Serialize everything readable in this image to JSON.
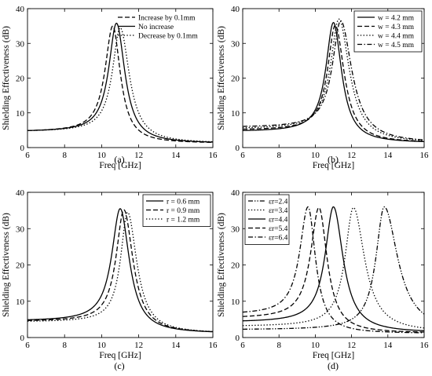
{
  "chart_data": [
    {
      "type": "line",
      "panel_label": "(a)",
      "xlabel": "Freq [GHz]",
      "ylabel": "Shielding Effectiveness (dB)",
      "xlim": [
        6,
        16
      ],
      "ylim": [
        0,
        40
      ],
      "xticks": [
        6,
        8,
        10,
        12,
        14,
        16
      ],
      "yticks": [
        0,
        10,
        20,
        30,
        40
      ],
      "legend_position": "top-right",
      "series": [
        {
          "name": "Increase by 0.1mm",
          "dash": "dashed",
          "f0": 10.6,
          "peak": 35.0,
          "left_gamma": 0.5,
          "right_gamma": 0.5,
          "floor": 1.2,
          "base6": 4.9
        },
        {
          "name": "No increase",
          "dash": "solid",
          "f0": 10.8,
          "peak": 35.8,
          "left_gamma": 0.5,
          "right_gamma": 0.55,
          "floor": 1.2,
          "base6": 4.9
        },
        {
          "name": "Decrease by 0.1mm",
          "dash": "dotted",
          "f0": 11.0,
          "peak": 34.5,
          "left_gamma": 0.5,
          "right_gamma": 0.6,
          "floor": 1.2,
          "base6": 4.9
        }
      ]
    },
    {
      "type": "line",
      "panel_label": "(b)",
      "xlabel": "Freq [GHz]",
      "ylabel": "Shielding Effectiveness (dB)",
      "xlim": [
        6,
        16
      ],
      "ylim": [
        0,
        40
      ],
      "xticks": [
        6,
        8,
        10,
        12,
        14,
        16
      ],
      "yticks": [
        0,
        10,
        20,
        30,
        40
      ],
      "legend_position": "top-right",
      "series": [
        {
          "name": "w = 4.2 mm",
          "dash": "solid",
          "f0": 11.0,
          "peak": 36.0,
          "left_gamma": 0.5,
          "right_gamma": 0.55,
          "floor": 1.3,
          "base6": 4.9
        },
        {
          "name": "w = 4.3 mm",
          "dash": "dashed",
          "f0": 11.1,
          "peak": 35.2,
          "left_gamma": 0.5,
          "right_gamma": 0.6,
          "floor": 1.3,
          "base6": 5.3
        },
        {
          "name": "w = 4.4 mm",
          "dash": "dotted",
          "f0": 11.3,
          "peak": 37.0,
          "left_gamma": 0.55,
          "right_gamma": 0.7,
          "floor": 1.3,
          "base6": 5.7
        },
        {
          "name": "w = 4.5 mm",
          "dash": "dashdot",
          "f0": 11.4,
          "peak": 36.5,
          "left_gamma": 0.55,
          "right_gamma": 0.75,
          "floor": 1.3,
          "base6": 6.1
        }
      ]
    },
    {
      "type": "line",
      "panel_label": "(c)",
      "xlabel": "Freq [GHz]",
      "ylabel": "Shielding Effectiveness (dB)",
      "xlim": [
        6,
        16
      ],
      "ylim": [
        0,
        40
      ],
      "xticks": [
        6,
        8,
        10,
        12,
        14,
        16
      ],
      "yticks": [
        0,
        10,
        20,
        30,
        40
      ],
      "legend_position": "top-right",
      "series": [
        {
          "name": "r = 0.6 mm",
          "dash": "solid",
          "f0": 11.0,
          "peak": 35.5,
          "left_gamma": 0.55,
          "right_gamma": 0.6,
          "floor": 1.1,
          "base6": 4.9
        },
        {
          "name": "r = 0.9 mm",
          "dash": "dashed",
          "f0": 11.2,
          "peak": 35.2,
          "left_gamma": 0.5,
          "right_gamma": 0.6,
          "floor": 1.1,
          "base6": 4.7
        },
        {
          "name": "r = 1.2 mm",
          "dash": "dotted",
          "f0": 11.4,
          "peak": 34.5,
          "left_gamma": 0.45,
          "right_gamma": 0.6,
          "floor": 1.1,
          "base6": 4.5
        }
      ]
    },
    {
      "type": "line",
      "panel_label": "(d)",
      "xlabel": "Freq [GHz]",
      "ylabel": "Shielding Effectiveness (dB)",
      "xlim": [
        6,
        16
      ],
      "ylim": [
        0,
        40
      ],
      "xticks": [
        6,
        8,
        10,
        12,
        14,
        16
      ],
      "yticks": [
        0,
        10,
        20,
        30,
        40
      ],
      "legend_position": "top-left",
      "series": [
        {
          "name": "εr=2.4",
          "dash": "dashdotdot",
          "f0": 13.8,
          "peak": 36.0,
          "left_gamma": 0.55,
          "right_gamma": 0.9,
          "floor": 1.5,
          "base6": 2.3
        },
        {
          "name": "εr=3.4",
          "dash": "dotted",
          "f0": 12.1,
          "peak": 35.8,
          "left_gamma": 0.55,
          "right_gamma": 0.75,
          "floor": 1.4,
          "base6": 3.3
        },
        {
          "name": "εr=4.4",
          "dash": "solid",
          "f0": 11.0,
          "peak": 36.0,
          "left_gamma": 0.55,
          "right_gamma": 0.65,
          "floor": 1.3,
          "base6": 4.6
        },
        {
          "name": "εr=5.4",
          "dash": "dashed",
          "f0": 10.2,
          "peak": 35.8,
          "left_gamma": 0.55,
          "right_gamma": 0.55,
          "floor": 1.2,
          "base6": 5.8
        },
        {
          "name": "εr=6.4",
          "dash": "dashdot",
          "f0": 9.6,
          "peak": 36.0,
          "left_gamma": 0.55,
          "right_gamma": 0.5,
          "floor": 1.1,
          "base6": 7.0
        }
      ]
    }
  ]
}
